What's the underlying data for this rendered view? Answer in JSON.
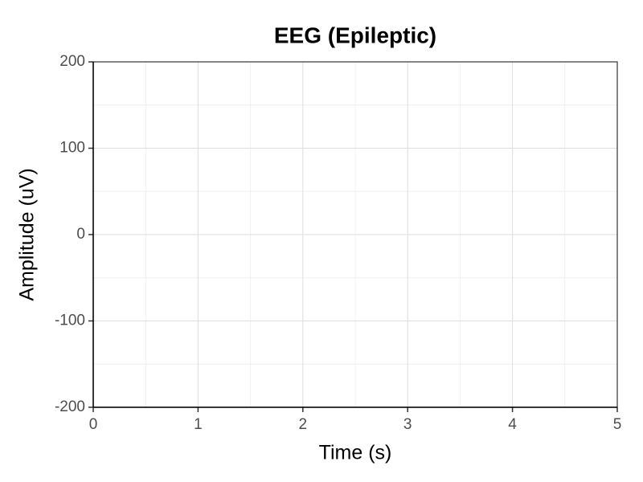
{
  "chart_data": {
    "type": "line",
    "title": "EEG (Epileptic)",
    "xlabel": "Time (s)",
    "ylabel": "Amplitude (uV)",
    "xlim": [
      0,
      5
    ],
    "xticks": [
      0,
      1,
      2,
      3,
      4,
      5
    ],
    "ylim": [
      -200,
      200
    ],
    "yticks": [
      -200,
      -100,
      0,
      100,
      200
    ],
    "grid": true,
    "series": []
  }
}
